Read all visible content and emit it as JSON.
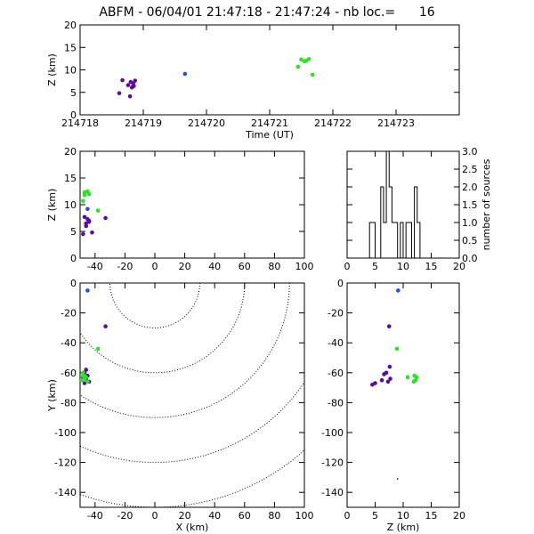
{
  "title": {
    "text": "ABFM - 06/04/01 21:47:18 - 21:47:24 - nb loc.=      16"
  },
  "colors": {
    "early": "#1e50f0",
    "mid": "#5a0ca0",
    "late": "#28e61e",
    "ink": "#000000"
  },
  "chart_data": [
    {
      "id": "time-height",
      "type": "scatter",
      "xlabel": "Time (UT)",
      "ylabel": "Z (km)",
      "xlim": [
        214718,
        214724
      ],
      "ylim": [
        0,
        20
      ],
      "xticks": [
        214718,
        214719,
        214720,
        214721,
        214722,
        214723
      ],
      "yticks": [
        0,
        5,
        10,
        15,
        20
      ],
      "points": [
        {
          "x": 214718.62,
          "y": 4.8,
          "c": "mid"
        },
        {
          "x": 214718.67,
          "y": 7.7,
          "c": "mid"
        },
        {
          "x": 214718.76,
          "y": 6.6,
          "c": "mid"
        },
        {
          "x": 214718.8,
          "y": 7.3,
          "c": "mid"
        },
        {
          "x": 214718.82,
          "y": 6.1,
          "c": "mid"
        },
        {
          "x": 214718.84,
          "y": 7.0,
          "c": "mid"
        },
        {
          "x": 214718.87,
          "y": 7.6,
          "c": "mid"
        },
        {
          "x": 214718.79,
          "y": 4.1,
          "c": "mid"
        },
        {
          "x": 214718.85,
          "y": 6.4,
          "c": "mid"
        },
        {
          "x": 214719.66,
          "y": 9.1,
          "c": "early"
        },
        {
          "x": 214721.45,
          "y": 10.7,
          "c": "late"
        },
        {
          "x": 214721.5,
          "y": 12.3,
          "c": "late"
        },
        {
          "x": 214721.55,
          "y": 11.9,
          "c": "late"
        },
        {
          "x": 214721.62,
          "y": 12.4,
          "c": "late"
        },
        {
          "x": 214721.58,
          "y": 12.0,
          "c": "late"
        },
        {
          "x": 214721.68,
          "y": 8.9,
          "c": "late"
        }
      ]
    },
    {
      "id": "x-height",
      "type": "scatter",
      "xlabel": "",
      "ylabel": "Z (km)",
      "xlim": [
        -50,
        100
      ],
      "ylim": [
        0,
        20
      ],
      "xticks": [
        -40,
        -20,
        0,
        20,
        40,
        60,
        80,
        100
      ],
      "yticks": [
        0,
        5,
        10,
        15,
        20
      ],
      "points": [
        {
          "x": -45,
          "y": 9.2,
          "c": "early"
        },
        {
          "x": -48,
          "y": 4.5,
          "c": "mid"
        },
        {
          "x": -47,
          "y": 7.7,
          "c": "mid"
        },
        {
          "x": -46,
          "y": 6.5,
          "c": "mid"
        },
        {
          "x": -45,
          "y": 7.3,
          "c": "mid"
        },
        {
          "x": -44,
          "y": 7.0,
          "c": "mid"
        },
        {
          "x": -42,
          "y": 4.8,
          "c": "mid"
        },
        {
          "x": -46,
          "y": 6.0,
          "c": "mid"
        },
        {
          "x": -33,
          "y": 7.5,
          "c": "mid"
        },
        {
          "x": -44,
          "y": 6.8,
          "c": "mid"
        },
        {
          "x": -48,
          "y": 10.7,
          "c": "late"
        },
        {
          "x": -47,
          "y": 12.3,
          "c": "late"
        },
        {
          "x": -45,
          "y": 12.5,
          "c": "late"
        },
        {
          "x": -44,
          "y": 12.0,
          "c": "late"
        },
        {
          "x": -38,
          "y": 8.9,
          "c": "late"
        },
        {
          "x": -47,
          "y": 11.8,
          "c": "late"
        }
      ]
    },
    {
      "id": "histogram",
      "type": "bar",
      "xlabel": "",
      "ylabel": "number of sources",
      "xlim": [
        0,
        20
      ],
      "ylim": [
        0,
        3
      ],
      "xticks": [
        0,
        5,
        10,
        15,
        20
      ],
      "yticks": [
        0.0,
        0.5,
        1.0,
        1.5,
        2.0,
        2.5,
        3.0
      ],
      "bin_width": 0.5,
      "bin_starts": [
        4.0,
        4.5,
        5.0,
        5.5,
        6.0,
        6.5,
        7.0,
        7.5,
        8.0,
        8.5,
        9.0,
        9.5,
        10.0,
        10.5,
        11.0,
        11.5,
        12.0,
        12.5,
        13.0
      ],
      "counts": [
        1,
        1,
        0,
        0,
        2,
        1,
        3,
        2,
        1,
        1,
        0,
        1,
        0,
        1,
        1,
        0,
        2,
        1,
        0
      ]
    },
    {
      "id": "plan-view",
      "type": "scatter",
      "xlabel": "X (km)",
      "ylabel": "Y (km)",
      "xlim": [
        -50,
        100
      ],
      "ylim": [
        -150,
        0
      ],
      "xticks": [
        -40,
        -20,
        0,
        20,
        40,
        60,
        80,
        100
      ],
      "yticks": [
        0,
        -20,
        -40,
        -60,
        -80,
        -100,
        -120,
        -140
      ],
      "contour_center": [
        0,
        0
      ],
      "contour_radii": [
        30,
        60,
        90,
        120,
        150
      ],
      "points": [
        {
          "x": -45,
          "y": -5,
          "c": "early"
        },
        {
          "x": -33,
          "y": -29,
          "c": "mid"
        },
        {
          "x": -47,
          "y": -60,
          "c": "mid"
        },
        {
          "x": -48,
          "y": -63,
          "c": "mid"
        },
        {
          "x": -46,
          "y": -64,
          "c": "mid"
        },
        {
          "x": -45,
          "y": -62,
          "c": "mid"
        },
        {
          "x": -44,
          "y": -66,
          "c": "mid"
        },
        {
          "x": -47,
          "y": -67,
          "c": "mid"
        },
        {
          "x": -46,
          "y": -58,
          "c": "mid"
        },
        {
          "x": -38,
          "y": -44,
          "c": "late"
        },
        {
          "x": -48,
          "y": -62,
          "c": "late"
        },
        {
          "x": -49,
          "y": -65,
          "c": "late"
        },
        {
          "x": -47,
          "y": -64,
          "c": "late"
        },
        {
          "x": -45,
          "y": -66,
          "c": "late"
        },
        {
          "x": -48,
          "y": -60,
          "c": "late"
        },
        {
          "x": -46,
          "y": -63,
          "c": "late"
        }
      ]
    },
    {
      "id": "height-y",
      "type": "scatter",
      "xlabel": "Z (km)",
      "ylabel": "",
      "xlim": [
        0,
        20
      ],
      "ylim": [
        -150,
        0
      ],
      "xticks": [
        0,
        5,
        10,
        15,
        20
      ],
      "yticks": [
        0,
        -20,
        -40,
        -60,
        -80,
        -100,
        -120,
        -140
      ],
      "points": [
        {
          "x": 9.1,
          "y": -5,
          "c": "early"
        },
        {
          "x": 7.5,
          "y": -29,
          "c": "mid"
        },
        {
          "x": 4.5,
          "y": -68,
          "c": "mid"
        },
        {
          "x": 5.0,
          "y": -67,
          "c": "mid"
        },
        {
          "x": 6.2,
          "y": -65,
          "c": "mid"
        },
        {
          "x": 6.6,
          "y": -61,
          "c": "mid"
        },
        {
          "x": 7.0,
          "y": -60,
          "c": "mid"
        },
        {
          "x": 7.3,
          "y": -66,
          "c": "mid"
        },
        {
          "x": 7.7,
          "y": -64,
          "c": "mid"
        },
        {
          "x": 7.6,
          "y": -56,
          "c": "mid"
        },
        {
          "x": 8.9,
          "y": -44,
          "c": "late"
        },
        {
          "x": 10.8,
          "y": -63,
          "c": "late"
        },
        {
          "x": 12.0,
          "y": -62,
          "c": "late"
        },
        {
          "x": 12.2,
          "y": -65,
          "c": "late"
        },
        {
          "x": 12.4,
          "y": -63,
          "c": "late"
        },
        {
          "x": 11.9,
          "y": -66,
          "c": "late"
        }
      ],
      "marks": [
        {
          "x": 9.0,
          "y": -131
        }
      ]
    }
  ]
}
